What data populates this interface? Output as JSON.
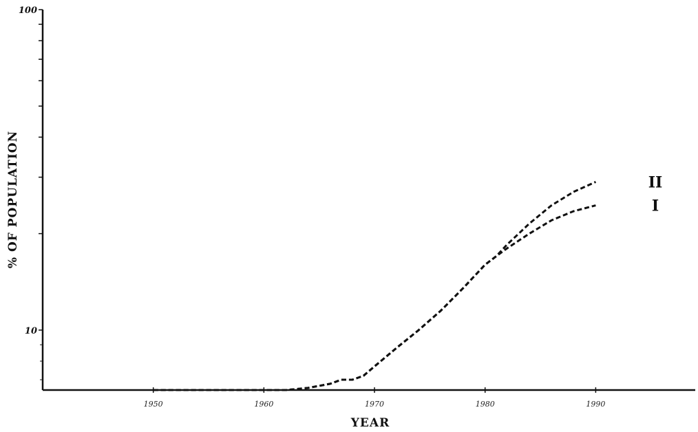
{
  "chart_data": {
    "type": "line",
    "title": "",
    "xlabel": "YEAR",
    "ylabel": "% OF POPULATION",
    "x_scale": "linear",
    "y_scale": "log",
    "xlim": [
      1940,
      1999
    ],
    "ylim": [
      6.5,
      100
    ],
    "x_ticks": [
      1950,
      1960,
      1970,
      1980,
      1990
    ],
    "x_tick_labels": [
      "1950",
      "1960",
      "1970",
      "1980",
      "1990"
    ],
    "y_ticks": [
      10,
      100
    ],
    "y_tick_labels": [
      "10",
      "100"
    ],
    "grid": false,
    "legend": "none",
    "line_style": "dashed",
    "line_color": "#111111",
    "series": [
      {
        "name": "I",
        "x": [
          1950,
          1962,
          1964,
          1966,
          1967,
          1968,
          1969,
          1970,
          1972,
          1974,
          1976,
          1978,
          1980,
          1981,
          1982,
          1984,
          1986,
          1988,
          1990
        ],
        "y": [
          6.5,
          6.5,
          6.6,
          6.8,
          7.0,
          7.0,
          7.2,
          7.7,
          8.8,
          10.0,
          11.5,
          13.5,
          16.0,
          17.0,
          18.0,
          20.0,
          22.0,
          23.5,
          24.5
        ]
      },
      {
        "name": "II",
        "x": [
          1950,
          1962,
          1964,
          1966,
          1967,
          1968,
          1969,
          1970,
          1972,
          1974,
          1976,
          1978,
          1980,
          1981,
          1982,
          1984,
          1986,
          1988,
          1990
        ],
        "y": [
          6.5,
          6.5,
          6.6,
          6.8,
          7.0,
          7.0,
          7.2,
          7.7,
          8.8,
          10.0,
          11.5,
          13.5,
          16.0,
          17.0,
          18.5,
          21.5,
          24.5,
          27.0,
          29.0
        ]
      }
    ]
  }
}
